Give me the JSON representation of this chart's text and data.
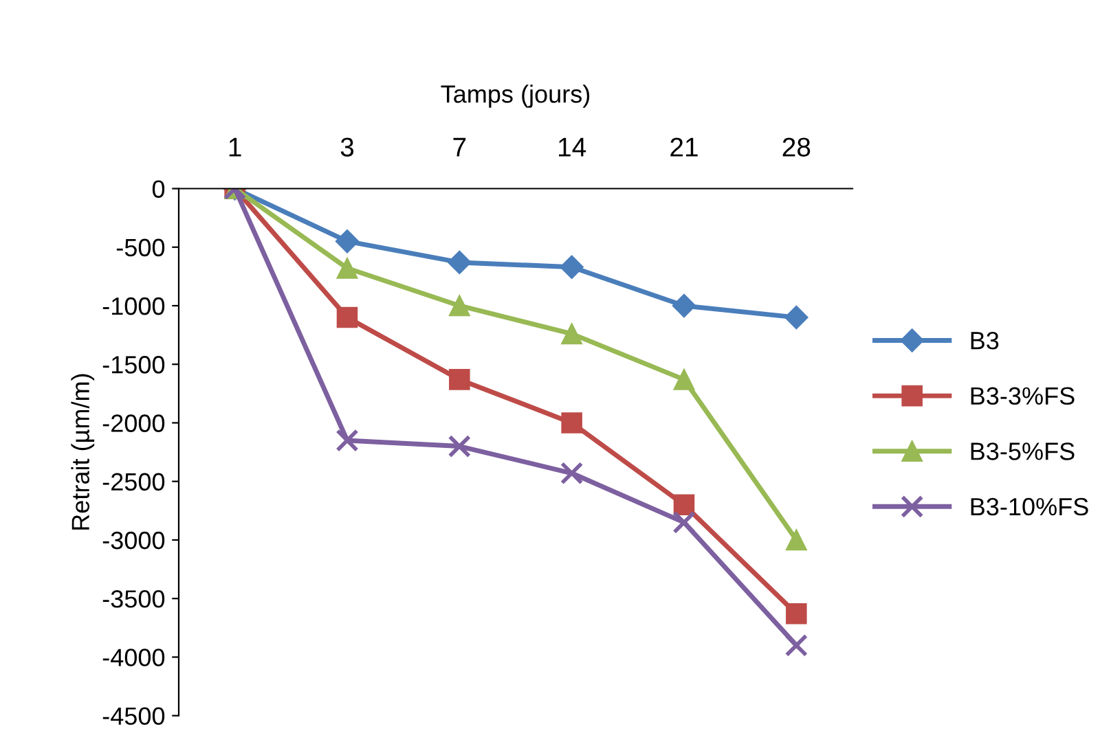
{
  "chart_data": {
    "type": "line",
    "xlabel": "Tamps (jours)",
    "ylabel": "Retrait (µm/m)",
    "categories": [
      "1",
      "3",
      "7",
      "14",
      "21",
      "28"
    ],
    "ylim": [
      -4500,
      0
    ],
    "yticks": [
      0,
      -500,
      -1000,
      -1500,
      -2000,
      -2500,
      -3000,
      -3500,
      -4000,
      -4500
    ],
    "grid": false,
    "legend": "right",
    "series": [
      {
        "name": "B3",
        "color": "#4a7ebb",
        "marker": "diamond",
        "values": [
          0,
          -450,
          -630,
          -670,
          -1000,
          -1100
        ]
      },
      {
        "name": "B3-3%FS",
        "color": "#be4b48",
        "marker": "square",
        "values": [
          0,
          -1100,
          -1630,
          -2000,
          -2700,
          -3630
        ]
      },
      {
        "name": "B3-5%FS",
        "color": "#98b954",
        "marker": "triangle",
        "values": [
          0,
          -680,
          -1000,
          -1240,
          -1630,
          -3000
        ]
      },
      {
        "name": "B3-10%FS",
        "color": "#7d60a0",
        "marker": "cross",
        "values": [
          0,
          -2150,
          -2200,
          -2430,
          -2850,
          -3900
        ]
      }
    ]
  }
}
